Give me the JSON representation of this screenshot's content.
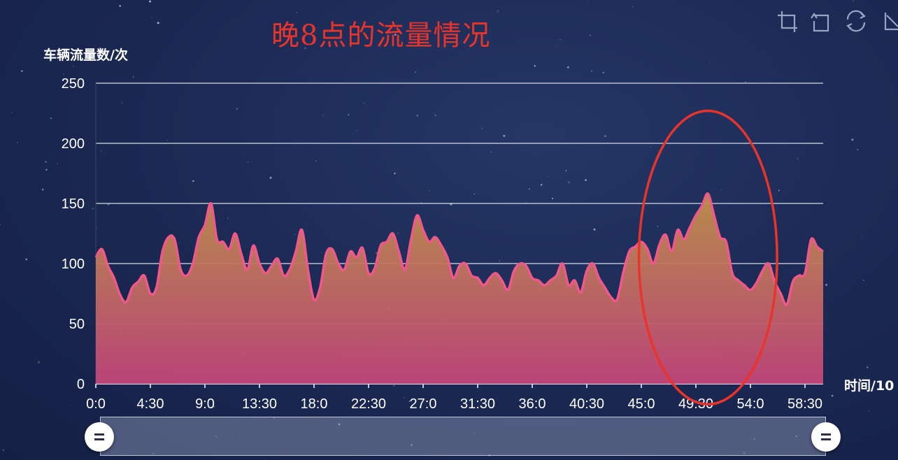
{
  "chart_data": {
    "type": "area",
    "title": "晚8点的流量情况",
    "ylabel": "车辆流量数/次",
    "xlabel": "时间/10",
    "ylim": [
      0,
      250
    ],
    "yticks": [
      0,
      50,
      100,
      150,
      200,
      250
    ],
    "xlim": [
      0,
      60
    ],
    "xticks": [
      {
        "value": 0,
        "label": "0:0"
      },
      {
        "value": 4.5,
        "label": "4:30"
      },
      {
        "value": 9,
        "label": "9:0"
      },
      {
        "value": 13.5,
        "label": "13:30"
      },
      {
        "value": 18,
        "label": "18:0"
      },
      {
        "value": 22.5,
        "label": "22:30"
      },
      {
        "value": 27,
        "label": "27:0"
      },
      {
        "value": 31.5,
        "label": "31:30"
      },
      {
        "value": 36,
        "label": "36:0"
      },
      {
        "value": 40.5,
        "label": "40:30"
      },
      {
        "value": 45,
        "label": "45:0"
      },
      {
        "value": 49.5,
        "label": "49:30"
      },
      {
        "value": 54,
        "label": "54:0"
      },
      {
        "value": 58.5,
        "label": "58:30"
      }
    ],
    "grid": true,
    "series": [
      {
        "x": [
          0,
          0.5,
          1,
          1.5,
          2,
          2.5,
          3,
          3.5,
          4,
          4.5,
          5,
          5.5,
          6,
          6.5,
          7,
          7.5,
          8,
          8.5,
          9,
          9.5,
          10,
          10.5,
          11,
          11.5,
          12,
          12.5,
          13,
          13.5,
          14,
          14.5,
          15,
          15.5,
          16,
          16.5,
          17,
          17.5,
          18,
          18.5,
          19,
          19.5,
          20,
          20.5,
          21,
          21.5,
          22,
          22.5,
          23,
          23.5,
          24,
          24.5,
          25,
          25.5,
          26,
          26.5,
          27,
          27.5,
          28,
          28.5,
          29,
          29.5,
          30,
          30.5,
          31,
          31.5,
          32,
          32.5,
          33,
          33.5,
          34,
          34.5,
          35,
          35.5,
          36,
          36.5,
          37,
          37.5,
          38,
          38.5,
          39,
          39.5,
          40,
          40.5,
          41,
          41.5,
          42,
          42.5,
          43,
          43.5,
          44,
          44.5,
          45,
          45.5,
          46,
          46.5,
          47,
          47.5,
          48,
          48.5,
          49,
          49.5,
          50,
          50.5,
          51,
          51.5,
          52,
          52.5,
          53,
          53.5,
          54,
          54.5,
          55,
          55.5,
          56,
          56.5,
          57,
          57.5,
          58,
          58.5,
          59,
          59.5,
          60
        ],
        "values": [
          105,
          112,
          98,
          88,
          74,
          68,
          80,
          85,
          90,
          75,
          80,
          110,
          122,
          120,
          95,
          90,
          100,
          122,
          132,
          150,
          120,
          118,
          112,
          125,
          108,
          95,
          115,
          100,
          92,
          98,
          104,
          90,
          95,
          110,
          128,
          95,
          70,
          80,
          108,
          112,
          100,
          95,
          110,
          105,
          113,
          92,
          96,
          115,
          118,
          125,
          110,
          95,
          120,
          140,
          128,
          118,
          122,
          115,
          105,
          88,
          98,
          100,
          90,
          88,
          82,
          88,
          92,
          86,
          78,
          94,
          100,
          98,
          88,
          86,
          82,
          86,
          90,
          100,
          82,
          86,
          76,
          94,
          100,
          88,
          80,
          72,
          70,
          92,
          110,
          114,
          118,
          112,
          100,
          116,
          124,
          110,
          128,
          120,
          130,
          140,
          148,
          158,
          140,
          122,
          118,
          92,
          86,
          82,
          78,
          84,
          94,
          100,
          85,
          75,
          66,
          85,
          90,
          92,
          120,
          114,
          110
        ],
        "color": "#f0588a"
      }
    ],
    "annotations": [
      {
        "type": "ellipse",
        "color": "#e8342a",
        "x_center": 50.5,
        "y_center": 105,
        "x_radius": 5.7,
        "y_radius": 122
      }
    ],
    "datazoom": {
      "start": 0,
      "end": 100
    }
  },
  "toolbox": [
    {
      "name": "zoom-icon"
    },
    {
      "name": "zoom-reset-icon"
    },
    {
      "name": "restore-icon"
    },
    {
      "name": "download-icon"
    }
  ],
  "colors": {
    "background": "#1c2a55",
    "series_line": "#f0588a",
    "area_top": "#c0904a",
    "area_bottom": "#c2457a",
    "annotation": "#e8342a",
    "grid": "#d8dbe8"
  }
}
